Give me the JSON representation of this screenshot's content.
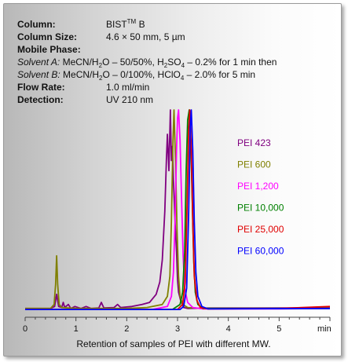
{
  "conditions": {
    "column": {
      "label": "Column:",
      "value_main": "BIST",
      "value_sup": "TM",
      "value_tail": " B"
    },
    "column_size": {
      "label": "Column Size:",
      "value": "4.6 × 50 mm, 5 µm"
    },
    "mobile_phase": {
      "label": "Mobile Phase:"
    },
    "solvent_a": {
      "label": "Solvent A:",
      "p1": " MeCN/H",
      "s1": "2",
      "p2": "O  – 50/50%,  H",
      "s2": "2",
      "p3": "SO",
      "s3": "4",
      "p4": " – 0.2%  for 1 min then"
    },
    "solvent_b": {
      "label": "Solvent B:",
      "p1": " MeCN/H",
      "s1": "2",
      "p2": "O  – 0/100%,  HClO",
      "s2": "4",
      "p3": " – 2.0%   for 5 min"
    },
    "flow_rate": {
      "label": "Flow Rate:",
      "value": "1.0 ml/min"
    },
    "detection": {
      "label": "Detection:",
      "value": "UV  210 nm"
    }
  },
  "chart_data": {
    "type": "line",
    "xlabel": "Retention of samples of PEI with different MW.",
    "x_unit_label": "min",
    "xlim": [
      0,
      6
    ],
    "x_ticks": [
      0,
      1,
      2,
      3,
      4,
      5
    ],
    "x_tick_labels": [
      "0",
      "1",
      "2",
      "3",
      "4",
      "5"
    ],
    "ylim": [
      0,
      100
    ],
    "grid": false,
    "legend": "right-middle",
    "series": [
      {
        "name": "PEI 423",
        "color": "#800080",
        "points": [
          [
            0,
            2
          ],
          [
            0.5,
            2
          ],
          [
            0.58,
            3
          ],
          [
            0.62,
            9
          ],
          [
            0.66,
            3
          ],
          [
            0.72,
            2.5
          ],
          [
            0.75,
            5
          ],
          [
            0.78,
            2.5
          ],
          [
            0.85,
            4
          ],
          [
            0.9,
            2
          ],
          [
            0.98,
            3
          ],
          [
            1.1,
            2
          ],
          [
            1.2,
            3
          ],
          [
            1.3,
            2
          ],
          [
            1.45,
            2.3
          ],
          [
            1.5,
            5
          ],
          [
            1.55,
            2.3
          ],
          [
            1.75,
            2.5
          ],
          [
            1.82,
            4
          ],
          [
            1.88,
            2.5
          ],
          [
            2.1,
            3
          ],
          [
            2.3,
            4
          ],
          [
            2.45,
            5
          ],
          [
            2.58,
            9
          ],
          [
            2.65,
            15
          ],
          [
            2.7,
            26
          ],
          [
            2.75,
            50
          ],
          [
            2.78,
            75
          ],
          [
            2.8,
            88
          ],
          [
            2.83,
            70
          ],
          [
            2.86,
            100
          ],
          [
            2.88,
            75
          ],
          [
            2.9,
            82
          ],
          [
            2.92,
            65
          ],
          [
            2.95,
            45
          ],
          [
            2.98,
            30
          ],
          [
            3.0,
            16
          ],
          [
            3.02,
            10
          ],
          [
            3.06,
            6
          ],
          [
            3.12,
            2.5
          ],
          [
            3.2,
            2
          ],
          [
            3.6,
            2.2
          ],
          [
            4.5,
            2.2
          ],
          [
            5.5,
            2.3
          ],
          [
            6,
            2.5
          ]
        ]
      },
      {
        "name": "PEI 600",
        "color": "#808000",
        "points": [
          [
            0,
            2
          ],
          [
            0.5,
            2
          ],
          [
            0.57,
            4
          ],
          [
            0.6,
            14
          ],
          [
            0.62,
            28
          ],
          [
            0.64,
            14
          ],
          [
            0.67,
            4
          ],
          [
            0.72,
            2.5
          ],
          [
            1.0,
            2
          ],
          [
            2.0,
            2
          ],
          [
            2.4,
            2.5
          ],
          [
            2.7,
            4
          ],
          [
            2.8,
            8
          ],
          [
            2.85,
            18
          ],
          [
            2.88,
            45
          ],
          [
            2.91,
            85
          ],
          [
            2.93,
            100
          ],
          [
            2.96,
            75
          ],
          [
            2.99,
            40
          ],
          [
            3.02,
            18
          ],
          [
            3.05,
            8
          ],
          [
            3.1,
            4
          ],
          [
            3.2,
            2.5
          ],
          [
            3.5,
            2
          ],
          [
            5,
            2
          ],
          [
            6,
            2.3
          ]
        ]
      },
      {
        "name": "PEI 1,200",
        "color": "#ff00ff",
        "points": [
          [
            0,
            1.5
          ],
          [
            2.5,
            1.5
          ],
          [
            2.8,
            3
          ],
          [
            2.88,
            8
          ],
          [
            2.92,
            20
          ],
          [
            2.95,
            45
          ],
          [
            2.98,
            80
          ],
          [
            3.0,
            96
          ],
          [
            3.02,
            100
          ],
          [
            3.05,
            85
          ],
          [
            3.08,
            55
          ],
          [
            3.11,
            28
          ],
          [
            3.14,
            12
          ],
          [
            3.2,
            5
          ],
          [
            3.3,
            2.5
          ],
          [
            3.5,
            1.8
          ],
          [
            5,
            1.8
          ],
          [
            6,
            2
          ]
        ]
      },
      {
        "name": "PEI 10,000",
        "color": "#008000",
        "points": [
          [
            0,
            1.5
          ],
          [
            2.9,
            1.5
          ],
          [
            3.05,
            4
          ],
          [
            3.1,
            10
          ],
          [
            3.14,
            30
          ],
          [
            3.17,
            70
          ],
          [
            3.2,
            95
          ],
          [
            3.23,
            100
          ],
          [
            3.26,
            85
          ],
          [
            3.29,
            55
          ],
          [
            3.32,
            25
          ],
          [
            3.35,
            10
          ],
          [
            3.4,
            4
          ],
          [
            3.5,
            2
          ],
          [
            6,
            2
          ]
        ]
      },
      {
        "name": "PEI  25,000",
        "color": "#e00000",
        "points": [
          [
            0,
            1.5
          ],
          [
            3.0,
            1.5
          ],
          [
            3.1,
            4
          ],
          [
            3.15,
            15
          ],
          [
            3.19,
            55
          ],
          [
            3.22,
            90
          ],
          [
            3.24,
            100
          ],
          [
            3.27,
            80
          ],
          [
            3.3,
            45
          ],
          [
            3.33,
            18
          ],
          [
            3.38,
            6
          ],
          [
            3.45,
            2.5
          ],
          [
            3.6,
            1.8
          ],
          [
            5,
            2
          ],
          [
            6,
            3
          ]
        ]
      },
      {
        "name": "PEI  60,000",
        "color": "#0000ff",
        "points": [
          [
            0,
            1.5
          ],
          [
            3.05,
            1.5
          ],
          [
            3.12,
            3
          ],
          [
            3.18,
            12
          ],
          [
            3.22,
            50
          ],
          [
            3.25,
            92
          ],
          [
            3.27,
            100
          ],
          [
            3.3,
            80
          ],
          [
            3.33,
            45
          ],
          [
            3.36,
            20
          ],
          [
            3.4,
            8
          ],
          [
            3.48,
            3
          ],
          [
            3.6,
            1.8
          ],
          [
            6,
            2
          ]
        ]
      }
    ]
  }
}
